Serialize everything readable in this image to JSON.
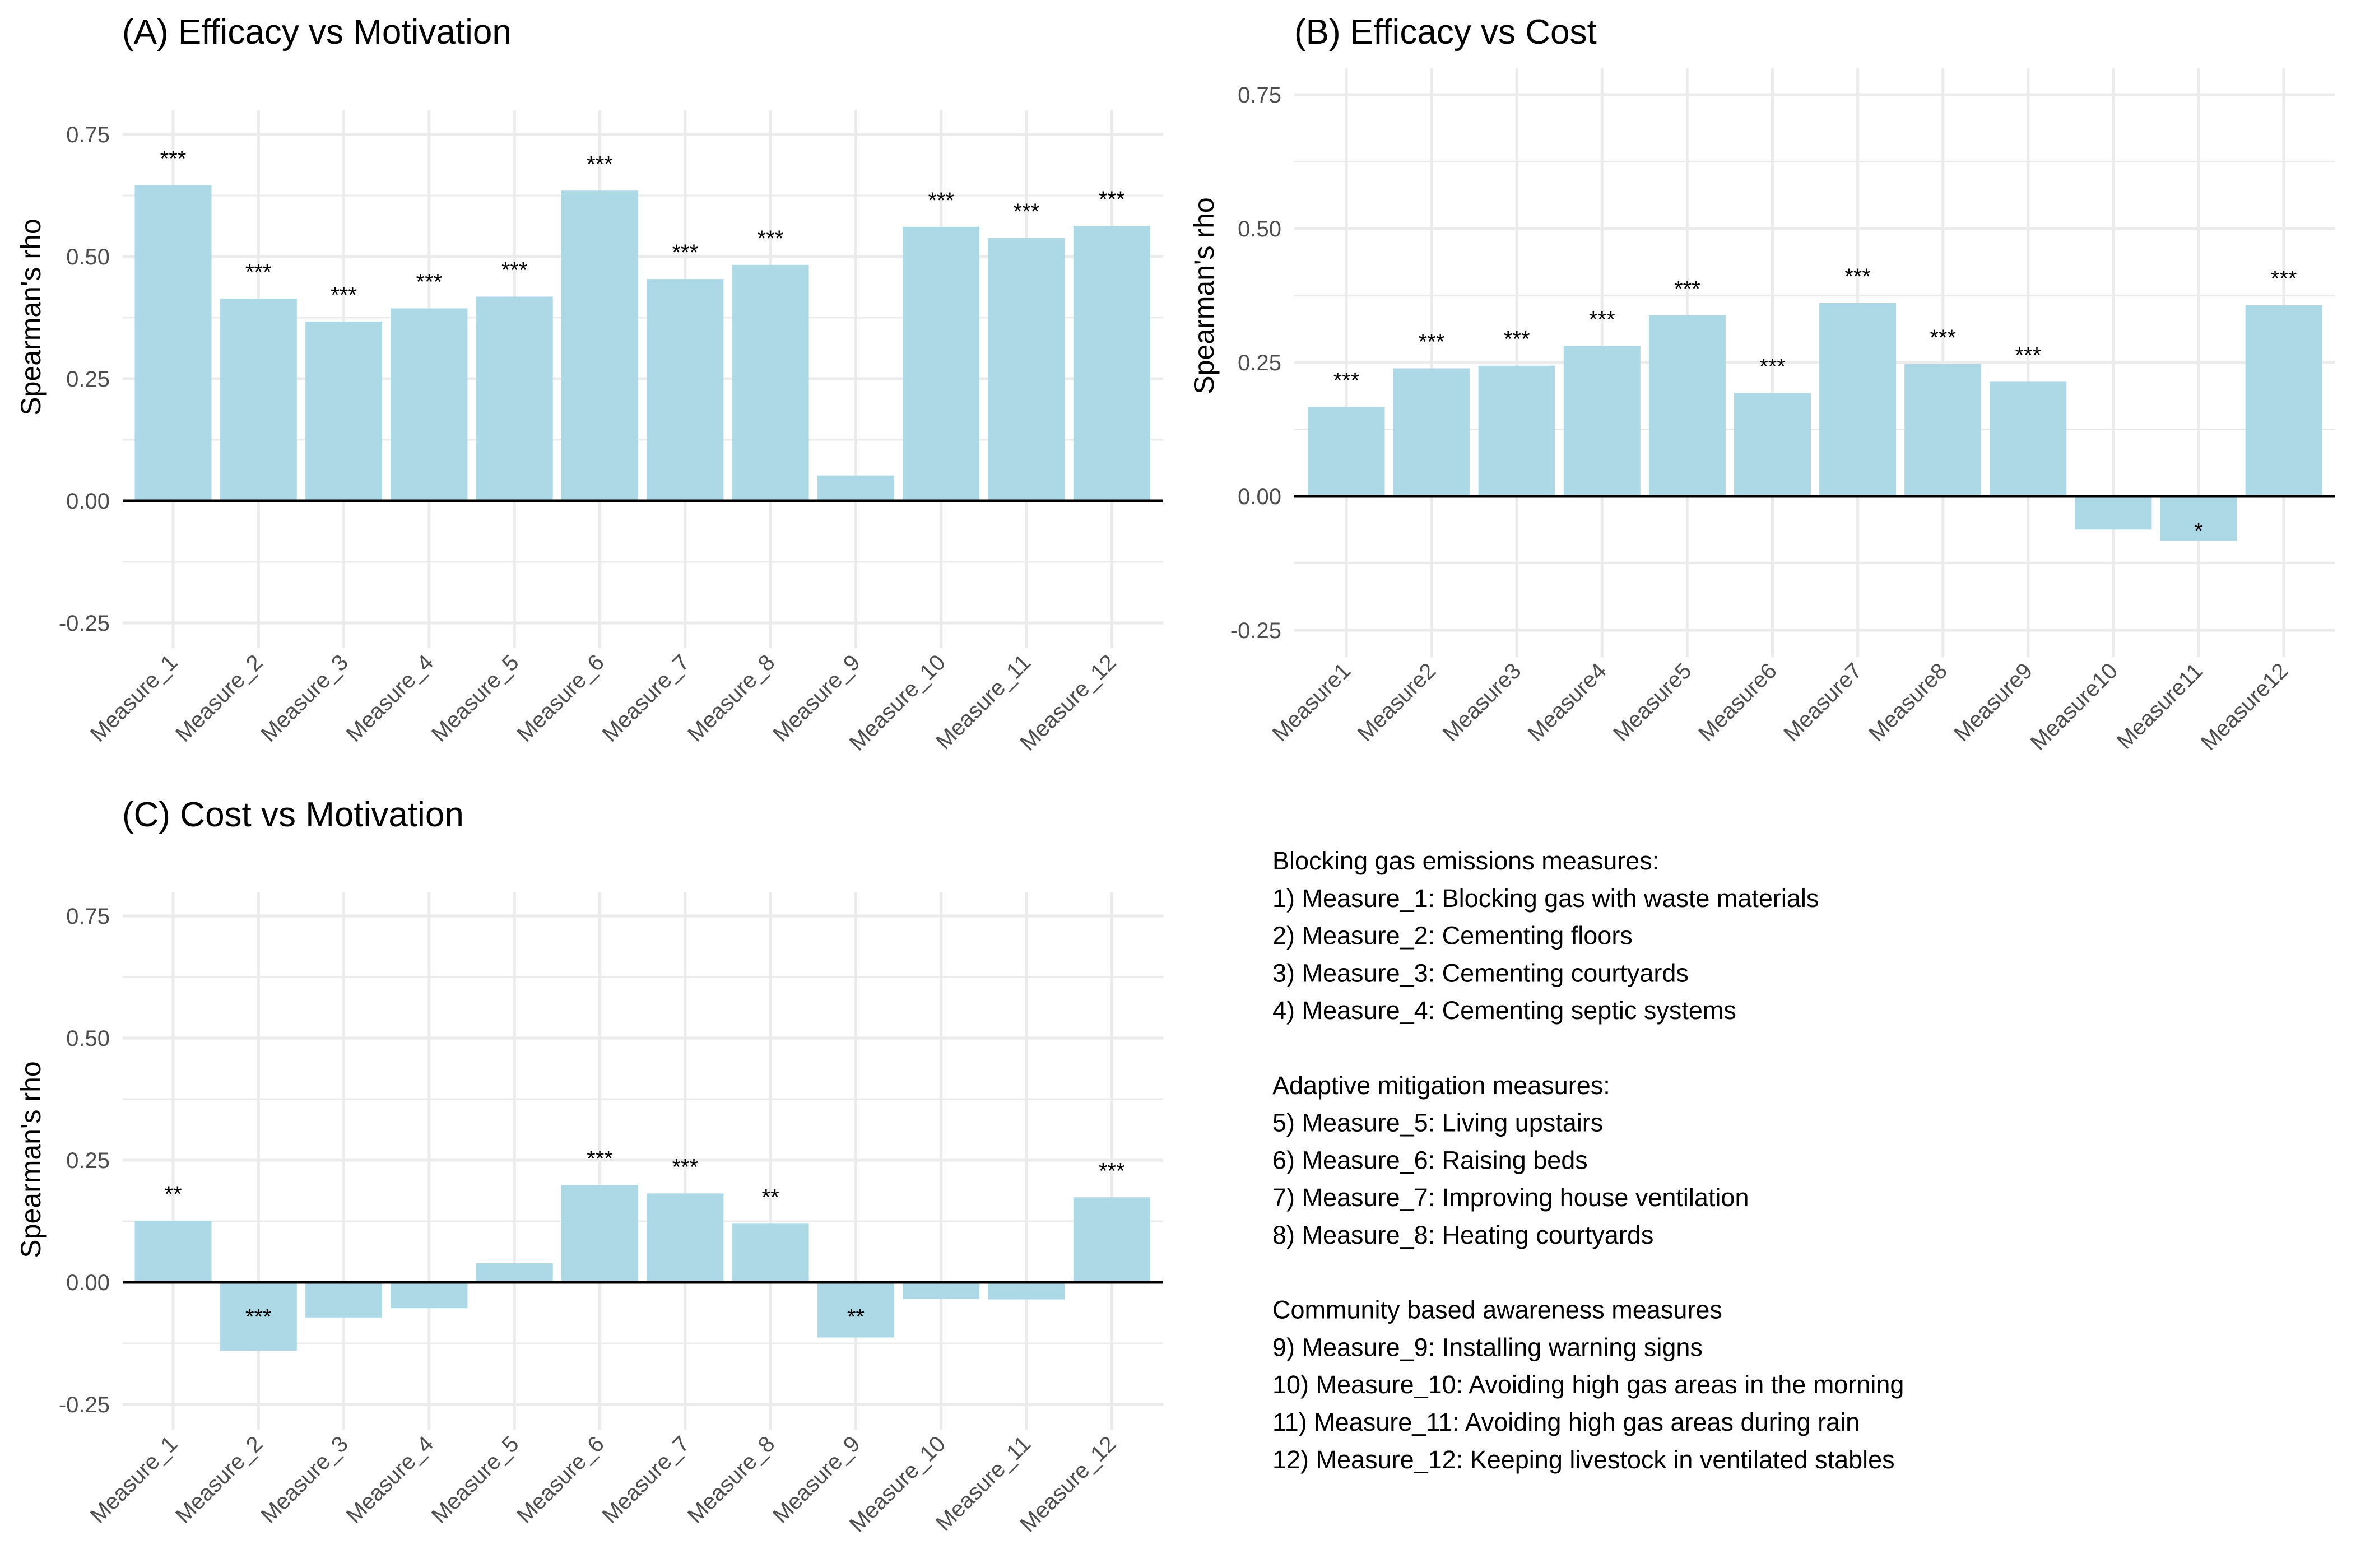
{
  "colors": {
    "bar": "#ADD8E6",
    "grid": "#EBEBEB",
    "zero_line": "#000000",
    "tick_text": "#4D4D4D"
  },
  "chart_data": [
    {
      "type": "bar",
      "title": "(A) Efficacy vs Motivation",
      "xlabel": "",
      "ylabel": "Spearman's rho",
      "ylim": [
        -0.3,
        0.78
      ],
      "yticks": [
        -0.25,
        0.0,
        0.25,
        0.5,
        0.75
      ],
      "ytick_labels": [
        "-0.25",
        "0.00",
        "0.25",
        "0.50",
        "0.75"
      ],
      "grid": true,
      "categories": [
        "Measure_1",
        "Measure_2",
        "Measure_3",
        "Measure_4",
        "Measure_5",
        "Measure_6",
        "Measure_7",
        "Measure_8",
        "Measure_9",
        "Measure_10",
        "Measure_11",
        "Measure_12"
      ],
      "values": [
        0.646,
        0.414,
        0.367,
        0.394,
        0.418,
        0.635,
        0.454,
        0.483,
        0.052,
        0.561,
        0.538,
        0.563
      ],
      "significance": [
        "***",
        "***",
        "***",
        "***",
        "***",
        "***",
        "***",
        "***",
        "",
        "***",
        "***",
        "***"
      ]
    },
    {
      "type": "bar",
      "title": "(B) Efficacy vs Cost",
      "xlabel": "",
      "ylabel": "Spearman's rho",
      "ylim": [
        -0.3,
        0.78
      ],
      "yticks": [
        -0.25,
        0.0,
        0.25,
        0.5,
        0.75
      ],
      "ytick_labels": [
        "-0.25",
        "0.00",
        "0.25",
        "0.50",
        "0.75"
      ],
      "grid": true,
      "categories": [
        "Measure1",
        "Measure2",
        "Measure3",
        "Measure4",
        "Measure5",
        "Measure6",
        "Measure7",
        "Measure8",
        "Measure9",
        "Measure10",
        "Measure11",
        "Measure12"
      ],
      "values": [
        0.167,
        0.239,
        0.244,
        0.281,
        0.338,
        0.193,
        0.361,
        0.247,
        0.214,
        -0.062,
        -0.083,
        0.357
      ],
      "significance": [
        "***",
        "***",
        "***",
        "***",
        "***",
        "***",
        "***",
        "***",
        "***",
        "",
        "*",
        "***"
      ]
    },
    {
      "type": "bar",
      "title": "(C) Cost vs Motivation",
      "xlabel": "",
      "ylabel": "Spearman's rho",
      "ylim": [
        -0.3,
        0.78
      ],
      "yticks": [
        -0.25,
        0.0,
        0.25,
        0.5,
        0.75
      ],
      "ytick_labels": [
        "-0.25",
        "0.00",
        "0.25",
        "0.50",
        "0.75"
      ],
      "grid": true,
      "categories": [
        "Measure_1",
        "Measure_2",
        "Measure_3",
        "Measure_4",
        "Measure_5",
        "Measure_6",
        "Measure_7",
        "Measure_8",
        "Measure_9",
        "Measure_10",
        "Measure_11",
        "Measure_12"
      ],
      "values": [
        0.126,
        -0.14,
        -0.072,
        -0.053,
        0.039,
        0.199,
        0.182,
        0.12,
        -0.113,
        -0.034,
        -0.035,
        0.174
      ],
      "significance": [
        "**",
        "***",
        "",
        "",
        "",
        "***",
        "***",
        "**",
        "**",
        "",
        "",
        "***"
      ]
    }
  ],
  "legend": {
    "lines": [
      "Blocking gas emissions measures:",
      "1) Measure_1: Blocking gas with waste materials",
      "2) Measure_2: Cementing floors",
      "3) Measure_3: Cementing courtyards",
      "4) Measure_4: Cementing septic systems",
      "",
      "Adaptive mitigation measures:",
      "5) Measure_5: Living upstairs",
      "6) Measure_6: Raising beds",
      "7) Measure_7: Improving house ventilation",
      "8) Measure_8: Heating courtyards",
      "",
      "Community based awareness measures",
      "9) Measure_9: Installing warning signs",
      "10) Measure_10: Avoiding high gas areas in the morning",
      "11) Measure_11: Avoiding high gas areas during rain",
      "12) Measure_12: Keeping livestock in ventilated stables"
    ]
  }
}
